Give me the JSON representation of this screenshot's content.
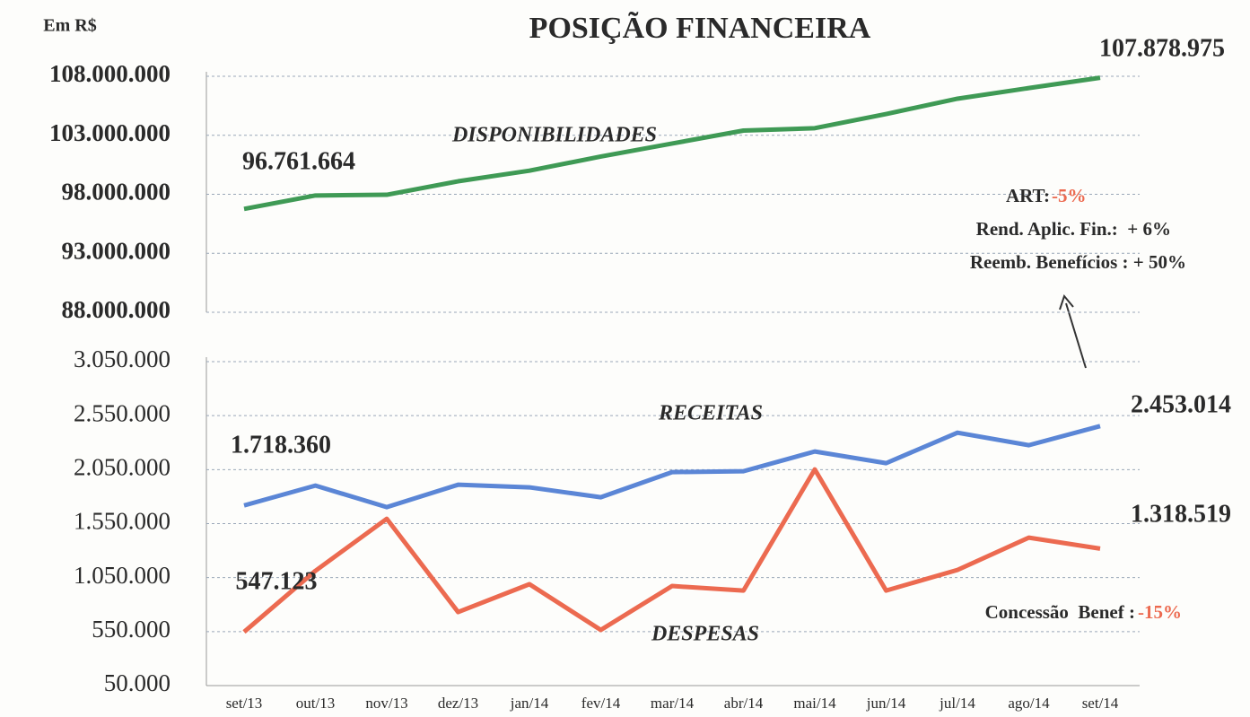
{
  "chart_data": [
    {
      "type": "line",
      "title": "POSIÇÃO FINANCEIRA",
      "y_label": "Em R$",
      "ylim": [
        88000000,
        108000000
      ],
      "yticks": [
        {
          "value": 88000000,
          "label": "88.000.000"
        },
        {
          "value": 93000000,
          "label": "93.000.000"
        },
        {
          "value": 98000000,
          "label": "98.000.000"
        },
        {
          "value": 103000000,
          "label": "103.000.000"
        },
        {
          "value": 108000000,
          "label": "108.000.000"
        }
      ],
      "grid": true,
      "series": [
        {
          "name": "DISPONIBILIDADES",
          "color": "#3f9a55",
          "values": [
            96761664,
            97900000,
            97960000,
            99100000,
            100000000,
            101200000,
            102300000,
            103400000,
            103600000,
            104800000,
            106100000,
            107000000,
            107878975
          ],
          "value_labels": [
            "96.761.664",
            null,
            null,
            null,
            null,
            null,
            null,
            null,
            null,
            null,
            null,
            null,
            "107.878.975"
          ]
        }
      ],
      "annotations": [
        "ART:",
        "-5%",
        "Rend. Aplic. Fin.:  + 6%",
        "Reemb. Benefícios : + 50%"
      ]
    },
    {
      "type": "line",
      "categories": [
        "set/13",
        "out/13",
        "nov/13",
        "dez/13",
        "jan/14",
        "fev/14",
        "mar/14",
        "abr/14",
        "mai/14",
        "jun/14",
        "jul/14",
        "ago/14",
        "set/14"
      ],
      "ylim": [
        50000,
        3050000
      ],
      "yticks": [
        {
          "value": 50000,
          "label": "50.000"
        },
        {
          "value": 550000,
          "label": "550.000"
        },
        {
          "value": 1050000,
          "label": "1.050.000"
        },
        {
          "value": 1550000,
          "label": "1.550.000"
        },
        {
          "value": 2050000,
          "label": "2.050.000"
        },
        {
          "value": 2550000,
          "label": "2.550.000"
        },
        {
          "value": 3050000,
          "label": "3.050.000"
        }
      ],
      "grid": true,
      "series": [
        {
          "name": "RECEITAS",
          "color": "#5b86d6",
          "values": [
            1718360,
            1902000,
            1703000,
            1910000,
            1886000,
            1794000,
            2027000,
            2035000,
            2218000,
            2110000,
            2392000,
            2276000,
            2453014
          ],
          "value_labels": [
            "1.718.360",
            null,
            null,
            null,
            null,
            null,
            null,
            null,
            null,
            null,
            null,
            null,
            "2.453.014"
          ]
        },
        {
          "name": "DESPESAS",
          "color": "#ec6a50",
          "values": [
            547123,
            1113000,
            1595000,
            731000,
            989000,
            565000,
            972000,
            930000,
            2052000,
            930000,
            1121000,
            1420000,
            1318519
          ],
          "value_labels": [
            "547.123",
            null,
            null,
            null,
            null,
            null,
            null,
            null,
            null,
            null,
            null,
            null,
            "1.318.519"
          ]
        }
      ],
      "annotations": [
        "Concessão  Benef :",
        "-15%"
      ]
    }
  ]
}
